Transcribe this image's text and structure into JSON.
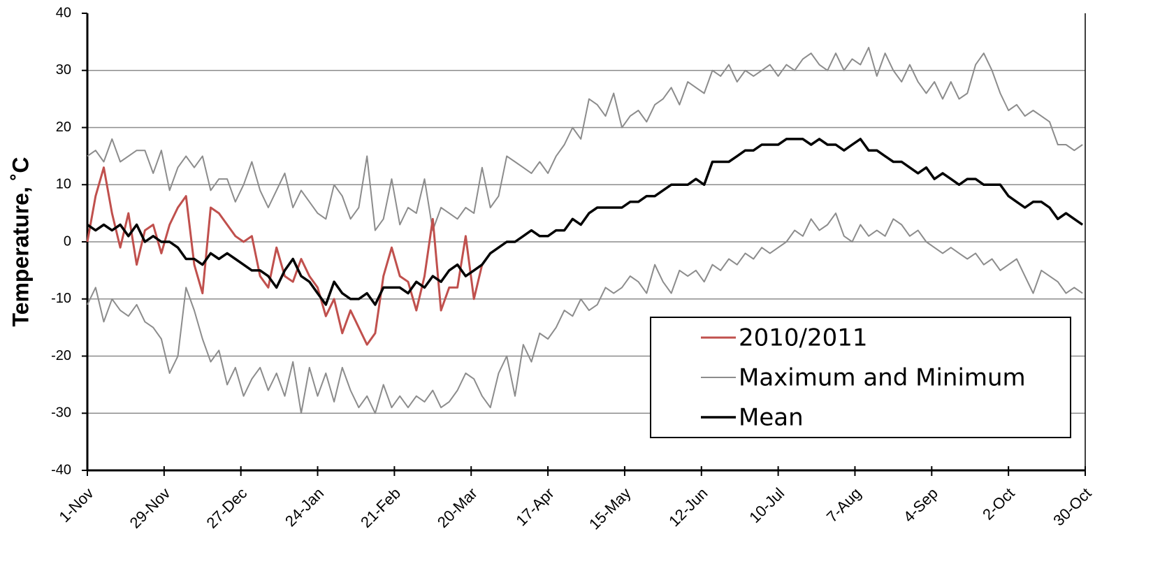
{
  "chart_data": {
    "type": "line",
    "ylabel": "Temperature, ˚C",
    "x": [
      0,
      3,
      6,
      9,
      12,
      15,
      18,
      21,
      24,
      27,
      30,
      33,
      36,
      39,
      42,
      45,
      48,
      51,
      54,
      57,
      60,
      63,
      66,
      69,
      72,
      75,
      78,
      81,
      84,
      87,
      90,
      93,
      96,
      99,
      102,
      105,
      108,
      111,
      114,
      117,
      120,
      123,
      126,
      129,
      132,
      135,
      138,
      141,
      144,
      147,
      150,
      153,
      156,
      159,
      162,
      165,
      168,
      171,
      174,
      177,
      180,
      183,
      186,
      189,
      192,
      195,
      198,
      201,
      204,
      207,
      210,
      213,
      216,
      219,
      222,
      225,
      228,
      231,
      234,
      237,
      240,
      243,
      246,
      249,
      252,
      255,
      258,
      261,
      264,
      267,
      270,
      273,
      276,
      279,
      282,
      285,
      288,
      291,
      294,
      297,
      300,
      303,
      306,
      309,
      312,
      315,
      318,
      321,
      324,
      327,
      330,
      333,
      336,
      339,
      342,
      345,
      348,
      351,
      354,
      357,
      360,
      363
    ],
    "xlim": [
      0,
      364
    ],
    "xticks": [
      {
        "value": 0,
        "label": "1-Nov"
      },
      {
        "value": 28,
        "label": "29-Nov"
      },
      {
        "value": 56,
        "label": "27-Dec"
      },
      {
        "value": 84,
        "label": "24-Jan"
      },
      {
        "value": 112,
        "label": "21-Feb"
      },
      {
        "value": 140,
        "label": "20-Mar"
      },
      {
        "value": 168,
        "label": "17-Apr"
      },
      {
        "value": 196,
        "label": "15-May"
      },
      {
        "value": 224,
        "label": "12-Jun"
      },
      {
        "value": 252,
        "label": "10-Jul"
      },
      {
        "value": 280,
        "label": "7-Aug"
      },
      {
        "value": 308,
        "label": "4-Sep"
      },
      {
        "value": 336,
        "label": "2-Oct"
      },
      {
        "value": 364,
        "label": "30-Oct"
      }
    ],
    "ylim": [
      -40,
      40
    ],
    "yticks": [
      -40,
      -30,
      -20,
      -10,
      0,
      10,
      20,
      30,
      40
    ],
    "grid": true,
    "legend": "lower right",
    "series": [
      {
        "name": "2010/2011",
        "color": "#c0504d",
        "width": 3,
        "values": [
          0,
          8,
          13,
          5,
          -1,
          5,
          -4,
          2,
          3,
          -2,
          3,
          6,
          8,
          -4,
          -9,
          6,
          5,
          3,
          1,
          0,
          1,
          -6,
          -8,
          -1,
          -6,
          -7,
          -3,
          -6,
          -8,
          -13,
          -10,
          -16,
          -12,
          -15,
          -18,
          -16,
          -6,
          -1,
          -6,
          -7,
          -12,
          -6,
          4,
          -12,
          -8,
          -8,
          1,
          -10,
          -4,
          null,
          null,
          null,
          null,
          null,
          null,
          null,
          null,
          null,
          null,
          null,
          null,
          null,
          null,
          null,
          null,
          null,
          null,
          null,
          null,
          null,
          null,
          null,
          null,
          null,
          null,
          null,
          null,
          null,
          null,
          null,
          null,
          null,
          null,
          null,
          null,
          null,
          null,
          null,
          null,
          null,
          null,
          null,
          null,
          null,
          null,
          null,
          null,
          null,
          null,
          null,
          null,
          null,
          null,
          null,
          null,
          null,
          null,
          null,
          null,
          null,
          null,
          null,
          null,
          null,
          null,
          null,
          null,
          null,
          null,
          null,
          null,
          null
        ]
      },
      {
        "name": "Maximum and Minimum",
        "color": "#8c8c8c",
        "width": 2,
        "values": [
          15,
          16,
          14,
          18,
          14,
          15,
          16,
          16,
          12,
          16,
          9,
          13,
          15,
          13,
          15,
          9,
          11,
          11,
          7,
          10,
          14,
          9,
          6,
          9,
          12,
          6,
          9,
          7,
          5,
          4,
          10,
          8,
          4,
          6,
          15,
          2,
          4,
          11,
          3,
          6,
          5,
          11,
          2,
          6,
          5,
          4,
          6,
          5,
          13,
          6,
          8,
          15,
          14,
          13,
          12,
          14,
          12,
          15,
          17,
          20,
          18,
          25,
          24,
          22,
          26,
          20,
          22,
          23,
          21,
          24,
          25,
          27,
          24,
          28,
          27,
          26,
          30,
          29,
          31,
          28,
          30,
          29,
          30,
          31,
          29,
          31,
          30,
          32,
          33,
          31,
          30,
          33,
          30,
          32,
          31,
          34,
          29,
          33,
          30,
          28,
          31,
          28,
          26,
          28,
          25,
          28,
          25,
          26,
          31,
          33,
          30,
          26,
          23,
          24,
          22,
          23,
          22,
          21,
          17,
          17,
          16,
          17
        ],
        "low": [
          -11,
          -8,
          -14,
          -10,
          -12,
          -13,
          -11,
          -14,
          -15,
          -17,
          -23,
          -20,
          -8,
          -12,
          -17,
          -21,
          -19,
          -25,
          -22,
          -27,
          -24,
          -22,
          -26,
          -23,
          -27,
          -21,
          -30,
          -22,
          -27,
          -23,
          -28,
          -22,
          -26,
          -29,
          -27,
          -30,
          -25,
          -29,
          -27,
          -29,
          -27,
          -28,
          -26,
          -29,
          -28,
          -26,
          -23,
          -24,
          -27,
          -29,
          -23,
          -20,
          -27,
          -18,
          -21,
          -16,
          -17,
          -15,
          -12,
          -13,
          -10,
          -12,
          -11,
          -8,
          -9,
          -8,
          -6,
          -7,
          -9,
          -4,
          -7,
          -9,
          -5,
          -6,
          -5,
          -7,
          -4,
          -5,
          -3,
          -4,
          -2,
          -3,
          -1,
          -2,
          -1,
          0,
          2,
          1,
          4,
          2,
          3,
          5,
          1,
          0,
          3,
          1,
          2,
          1,
          4,
          3,
          1,
          2,
          0,
          -1,
          -2,
          -1,
          -2,
          -3,
          -2,
          -4,
          -3,
          -5,
          -4,
          -3,
          -6,
          -9,
          -5,
          -6,
          -7,
          -9,
          -8,
          -9
        ]
      },
      {
        "name": "Mean",
        "color": "#000000",
        "width": 3.5,
        "values": [
          3,
          2,
          3,
          2,
          3,
          1,
          3,
          0,
          1,
          0,
          0,
          -1,
          -3,
          -3,
          -4,
          -2,
          -3,
          -2,
          -3,
          -4,
          -5,
          -5,
          -6,
          -8,
          -5,
          -3,
          -6,
          -7,
          -9,
          -11,
          -7,
          -9,
          -10,
          -10,
          -9,
          -11,
          -8,
          -8,
          -8,
          -9,
          -7,
          -8,
          -6,
          -7,
          -5,
          -4,
          -6,
          -5,
          -4,
          -2,
          -1,
          0,
          0,
          1,
          2,
          1,
          1,
          2,
          2,
          4,
          3,
          5,
          6,
          6,
          6,
          6,
          7,
          7,
          8,
          8,
          9,
          10,
          10,
          10,
          11,
          10,
          14,
          14,
          14,
          15,
          16,
          16,
          17,
          17,
          17,
          18,
          18,
          18,
          17,
          18,
          17,
          17,
          16,
          17,
          18,
          16,
          16,
          15,
          14,
          14,
          13,
          12,
          13,
          11,
          12,
          11,
          10,
          11,
          11,
          10,
          10,
          10,
          8,
          7,
          6,
          7,
          7,
          6,
          4,
          5,
          4,
          3
        ]
      }
    ]
  }
}
